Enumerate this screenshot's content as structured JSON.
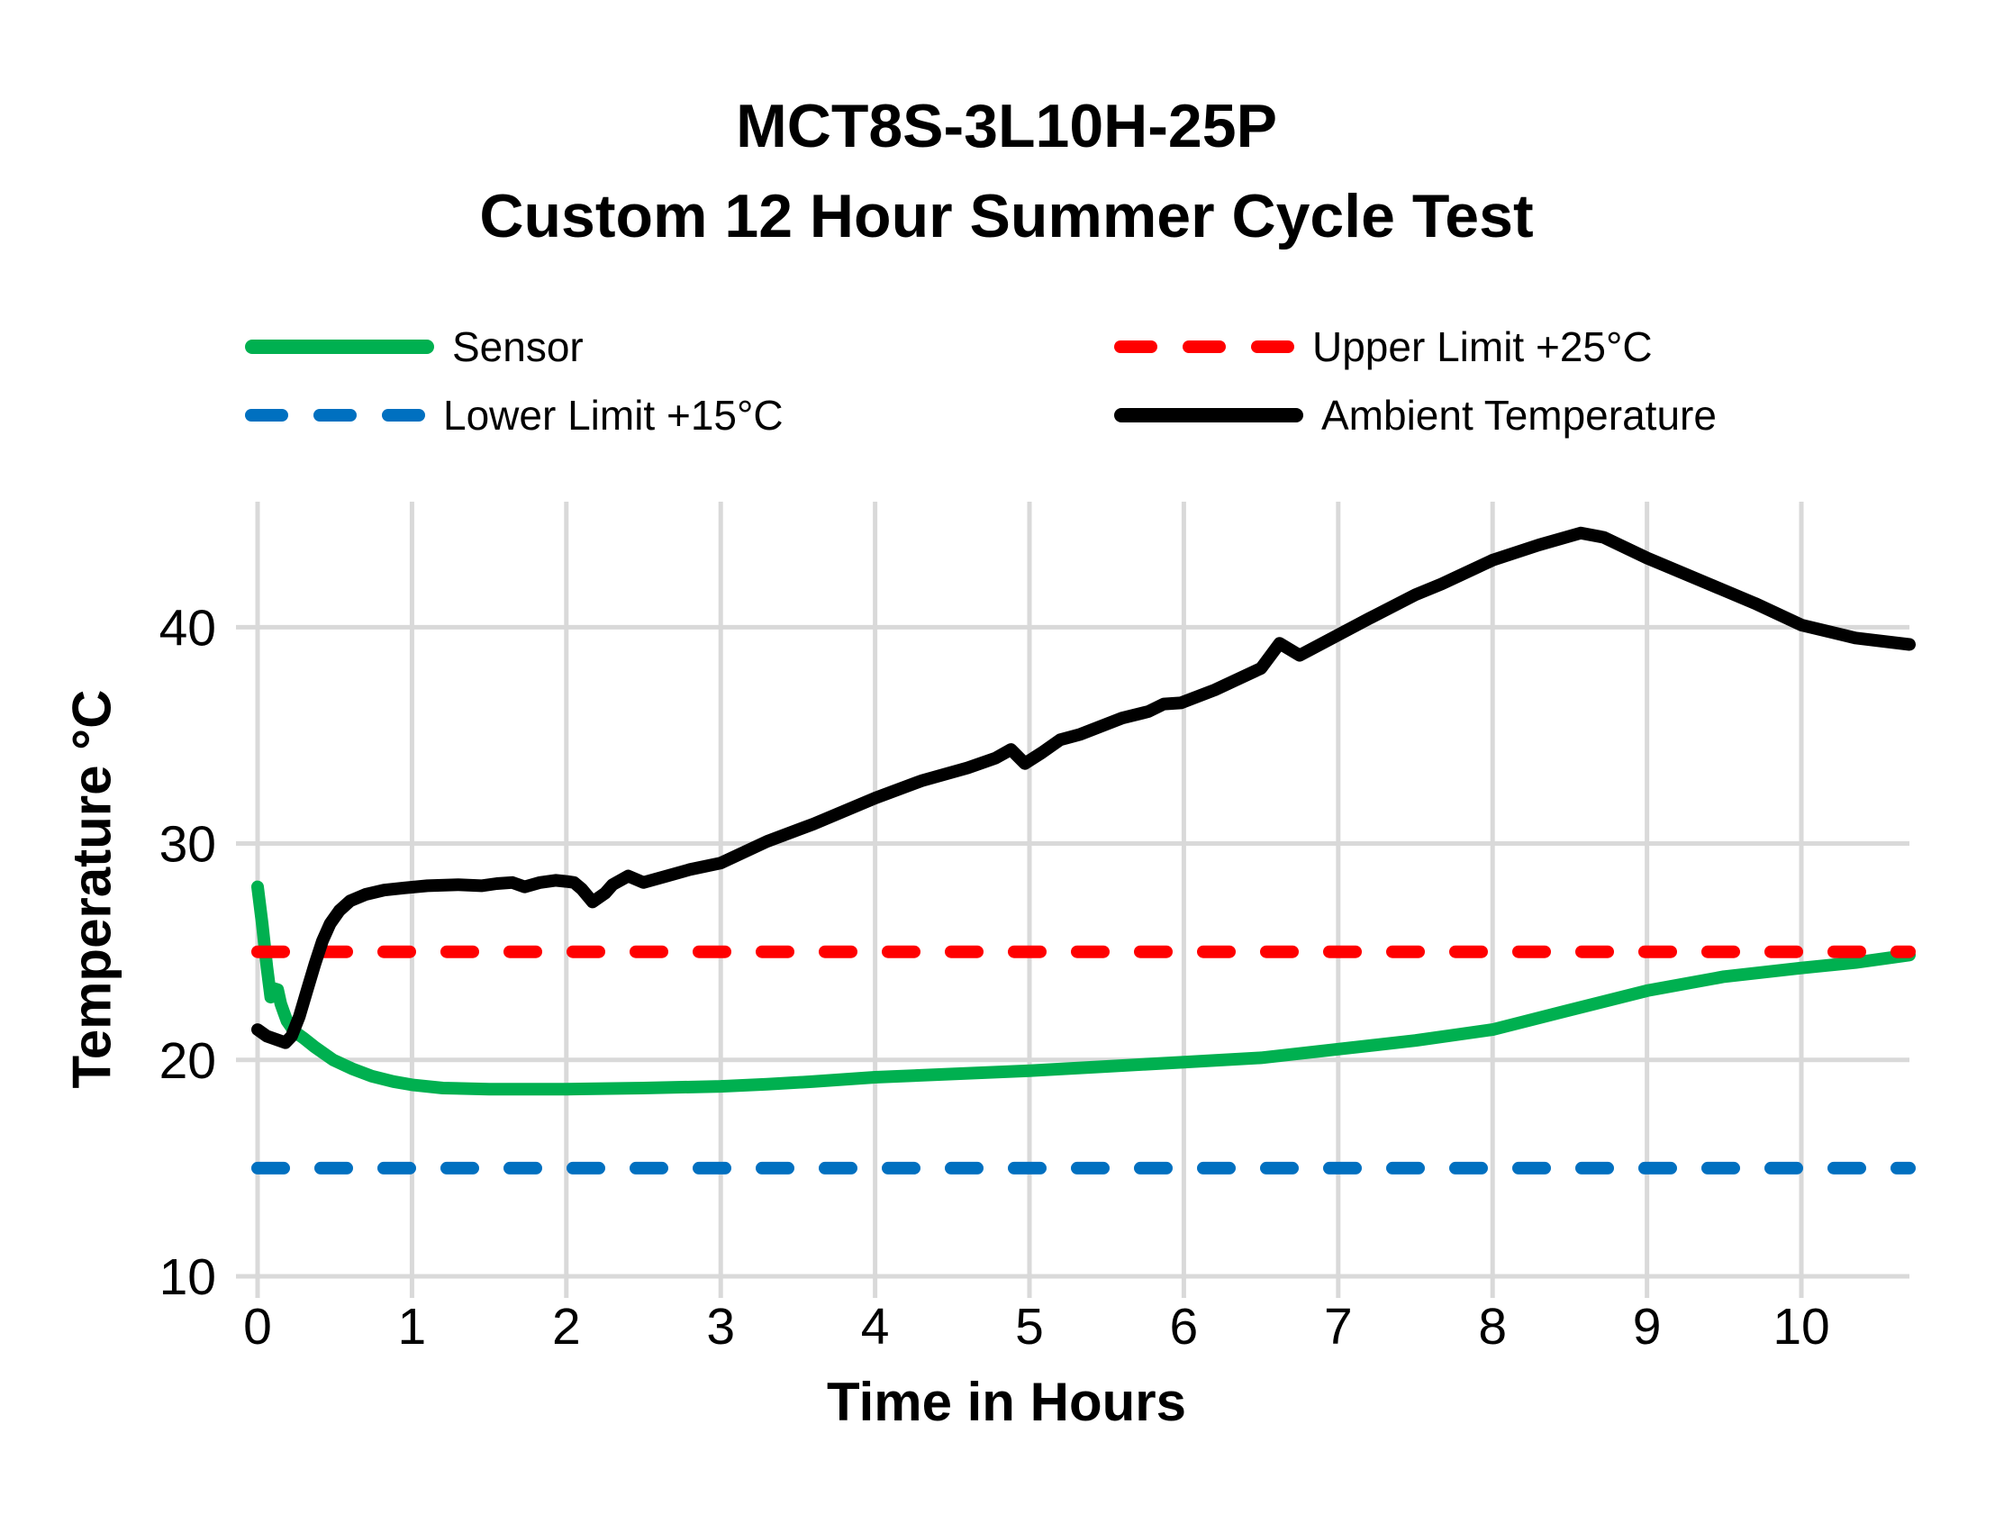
{
  "title": {
    "line1": "MCT8S-3L10H-25P",
    "line2": "Custom 12 Hour Summer Cycle Test"
  },
  "legend": [
    {
      "label": "Sensor",
      "color": "#00B050",
      "style": "solid"
    },
    {
      "label": "Upper Limit +25°C",
      "color": "#FF0000",
      "style": "dashed"
    },
    {
      "label": "Lower Limit +15°C",
      "color": "#0070C0",
      "style": "dashed"
    },
    {
      "label": "Ambient Temperature",
      "color": "#000000",
      "style": "solid"
    }
  ],
  "colors": {
    "sensor": "#00B050",
    "upper_limit": "#FF0000",
    "lower_limit": "#0070C0",
    "ambient": "#000000",
    "gridline": "#D9D9D9",
    "text": "#000000"
  },
  "chart_data": {
    "type": "line",
    "title": "MCT8S-3L10H-25P — Custom 12 Hour Summer Cycle Test",
    "xlabel": "Time in Hours",
    "ylabel": "Temperature °C",
    "xlim": [
      0,
      10.7
    ],
    "ylim": [
      10,
      45.8
    ],
    "x_ticks": [
      0,
      1,
      2,
      3,
      4,
      5,
      6,
      7,
      8,
      9,
      10
    ],
    "x_tick_labels": [
      "0",
      "1",
      "2",
      "3",
      "4",
      "5",
      "6",
      "7",
      "8",
      "9",
      "10"
    ],
    "y_ticks": [
      10,
      20,
      30,
      40
    ],
    "y_tick_labels": [
      "10",
      "20",
      "30",
      "40"
    ],
    "grid": true,
    "legend_position": "top",
    "series": [
      {
        "name": "Sensor",
        "color": "#00B050",
        "style": "solid",
        "points": [
          [
            0,
            28.0
          ],
          [
            0.03,
            26.3
          ],
          [
            0.06,
            24.3
          ],
          [
            0.085,
            22.9
          ],
          [
            0.105,
            23.3
          ],
          [
            0.13,
            23.25
          ],
          [
            0.15,
            22.6
          ],
          [
            0.17,
            22.2
          ],
          [
            0.19,
            21.8
          ],
          [
            0.24,
            21.3
          ],
          [
            0.3,
            21.0
          ],
          [
            0.37,
            20.6
          ],
          [
            0.49,
            20.0
          ],
          [
            0.61,
            19.6
          ],
          [
            0.74,
            19.25
          ],
          [
            0.88,
            19.0
          ],
          [
            1.0,
            18.85
          ],
          [
            1.2,
            18.7
          ],
          [
            1.5,
            18.65
          ],
          [
            2.0,
            18.65
          ],
          [
            2.5,
            18.7
          ],
          [
            3.0,
            18.78
          ],
          [
            3.3,
            18.88
          ],
          [
            3.6,
            19.0
          ],
          [
            4.0,
            19.2
          ],
          [
            4.5,
            19.35
          ],
          [
            5.0,
            19.5
          ],
          [
            5.5,
            19.7
          ],
          [
            6.0,
            19.9
          ],
          [
            6.5,
            20.1
          ],
          [
            7.0,
            20.5
          ],
          [
            7.5,
            20.9
          ],
          [
            8.0,
            21.4
          ],
          [
            8.47,
            22.25
          ],
          [
            9.0,
            23.2
          ],
          [
            9.5,
            23.85
          ],
          [
            10.0,
            24.25
          ],
          [
            10.35,
            24.5
          ],
          [
            10.7,
            24.85
          ]
        ]
      },
      {
        "name": "Upper Limit +25°C",
        "color": "#FF0000",
        "style": "dashed",
        "points": [
          [
            0,
            25
          ],
          [
            10.7,
            25
          ]
        ]
      },
      {
        "name": "Lower Limit +15°C",
        "color": "#0070C0",
        "style": "dashed",
        "points": [
          [
            0,
            15
          ],
          [
            10.7,
            15
          ]
        ]
      },
      {
        "name": "Ambient Temperature",
        "color": "#000000",
        "style": "solid",
        "points": [
          [
            0,
            21.4
          ],
          [
            0.06,
            21.1
          ],
          [
            0.12,
            20.95
          ],
          [
            0.18,
            20.8
          ],
          [
            0.22,
            21.1
          ],
          [
            0.27,
            22.0
          ],
          [
            0.32,
            23.2
          ],
          [
            0.37,
            24.4
          ],
          [
            0.42,
            25.5
          ],
          [
            0.47,
            26.3
          ],
          [
            0.53,
            26.9
          ],
          [
            0.6,
            27.35
          ],
          [
            0.7,
            27.65
          ],
          [
            0.82,
            27.85
          ],
          [
            0.95,
            27.95
          ],
          [
            1.1,
            28.05
          ],
          [
            1.3,
            28.1
          ],
          [
            1.45,
            28.05
          ],
          [
            1.55,
            28.15
          ],
          [
            1.65,
            28.2
          ],
          [
            1.73,
            28.0
          ],
          [
            1.83,
            28.2
          ],
          [
            1.93,
            28.3
          ],
          [
            2.0,
            28.25
          ],
          [
            2.05,
            28.2
          ],
          [
            2.1,
            27.9
          ],
          [
            2.17,
            27.3
          ],
          [
            2.25,
            27.7
          ],
          [
            2.3,
            28.1
          ],
          [
            2.4,
            28.5
          ],
          [
            2.5,
            28.2
          ],
          [
            2.65,
            28.5
          ],
          [
            2.8,
            28.8
          ],
          [
            3.0,
            29.1
          ],
          [
            3.3,
            30.1
          ],
          [
            3.6,
            30.9
          ],
          [
            4.0,
            32.1
          ],
          [
            4.3,
            32.9
          ],
          [
            4.6,
            33.5
          ],
          [
            4.78,
            33.95
          ],
          [
            4.88,
            34.35
          ],
          [
            4.97,
            33.7
          ],
          [
            5.08,
            34.2
          ],
          [
            5.2,
            34.8
          ],
          [
            5.33,
            35.05
          ],
          [
            5.6,
            35.8
          ],
          [
            5.77,
            36.1
          ],
          [
            5.87,
            36.45
          ],
          [
            5.98,
            36.5
          ],
          [
            6.2,
            37.1
          ],
          [
            6.5,
            38.1
          ],
          [
            6.62,
            39.25
          ],
          [
            6.75,
            38.7
          ],
          [
            6.91,
            39.3
          ],
          [
            7.2,
            40.4
          ],
          [
            7.5,
            41.5
          ],
          [
            7.67,
            42.0
          ],
          [
            8.0,
            43.1
          ],
          [
            8.3,
            43.8
          ],
          [
            8.57,
            44.35
          ],
          [
            8.72,
            44.15
          ],
          [
            9.0,
            43.2
          ],
          [
            9.4,
            42.0
          ],
          [
            9.7,
            41.1
          ],
          [
            10.0,
            40.1
          ],
          [
            10.35,
            39.5
          ],
          [
            10.7,
            39.2
          ]
        ]
      }
    ]
  }
}
